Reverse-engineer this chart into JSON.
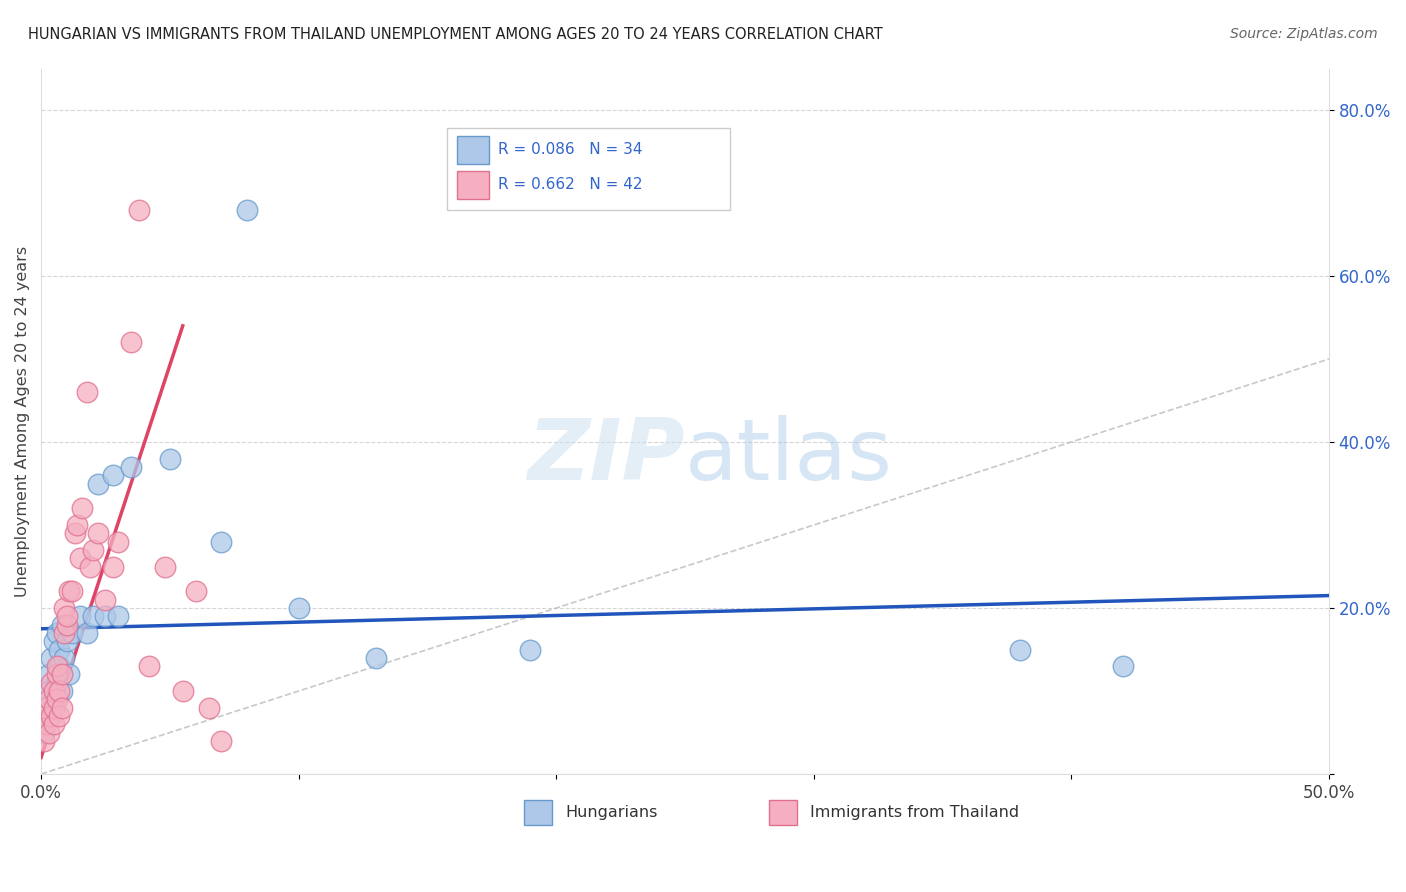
{
  "title": "HUNGARIAN VS IMMIGRANTS FROM THAILAND UNEMPLOYMENT AMONG AGES 20 TO 24 YEARS CORRELATION CHART",
  "source": "Source: ZipAtlas.com",
  "ylabel": "Unemployment Among Ages 20 to 24 years",
  "xlim": [
    0.0,
    0.5
  ],
  "ylim": [
    0.0,
    0.85
  ],
  "hungarian_color": "#adc8e8",
  "thai_color": "#f5afc0",
  "hungarian_edge": "#6699cc",
  "thai_edge": "#e07090",
  "hungarian_R": 0.086,
  "hungarian_N": 34,
  "thai_R": 0.662,
  "thai_N": 42,
  "legend_label_hungarian": "Hungarians",
  "legend_label_thai": "Immigrants from Thailand",
  "watermark_zip": "ZIP",
  "watermark_atlas": "atlas",
  "hungarian_line_color": "#2255bb",
  "thai_line_color": "#dd4466",
  "diagonal_color": "#bbbbbb",
  "hungarian_x": [
    0.001,
    0.002,
    0.003,
    0.003,
    0.004,
    0.004,
    0.005,
    0.005,
    0.006,
    0.006,
    0.007,
    0.007,
    0.008,
    0.008,
    0.009,
    0.01,
    0.011,
    0.012,
    0.015,
    0.018,
    0.02,
    0.022,
    0.025,
    0.028,
    0.03,
    0.035,
    0.05,
    0.07,
    0.08,
    0.1,
    0.13,
    0.19,
    0.38,
    0.42
  ],
  "hungarian_y": [
    0.05,
    0.08,
    0.12,
    0.1,
    0.07,
    0.14,
    0.09,
    0.16,
    0.11,
    0.17,
    0.13,
    0.15,
    0.1,
    0.18,
    0.14,
    0.16,
    0.12,
    0.17,
    0.19,
    0.17,
    0.19,
    0.35,
    0.19,
    0.36,
    0.19,
    0.37,
    0.38,
    0.28,
    0.68,
    0.2,
    0.14,
    0.15,
    0.15,
    0.13
  ],
  "thai_x": [
    0.001,
    0.002,
    0.002,
    0.003,
    0.003,
    0.004,
    0.004,
    0.005,
    0.005,
    0.005,
    0.006,
    0.006,
    0.006,
    0.007,
    0.007,
    0.008,
    0.008,
    0.009,
    0.009,
    0.01,
    0.01,
    0.011,
    0.012,
    0.013,
    0.014,
    0.015,
    0.016,
    0.018,
    0.019,
    0.02,
    0.022,
    0.025,
    0.028,
    0.03,
    0.035,
    0.038,
    0.042,
    0.048,
    0.055,
    0.06,
    0.065,
    0.07
  ],
  "thai_y": [
    0.04,
    0.06,
    0.08,
    0.05,
    0.09,
    0.07,
    0.11,
    0.06,
    0.08,
    0.1,
    0.12,
    0.09,
    0.13,
    0.1,
    0.07,
    0.08,
    0.12,
    0.17,
    0.2,
    0.18,
    0.19,
    0.22,
    0.22,
    0.29,
    0.3,
    0.26,
    0.32,
    0.46,
    0.25,
    0.27,
    0.29,
    0.21,
    0.25,
    0.28,
    0.52,
    0.68,
    0.13,
    0.25,
    0.1,
    0.22,
    0.08,
    0.04
  ],
  "thai_line_x0": 0.0,
  "thai_line_y0": 0.02,
  "thai_line_x1": 0.055,
  "thai_line_y1": 0.54,
  "hung_line_x0": 0.0,
  "hung_line_y0": 0.175,
  "hung_line_x1": 0.5,
  "hung_line_y1": 0.215
}
